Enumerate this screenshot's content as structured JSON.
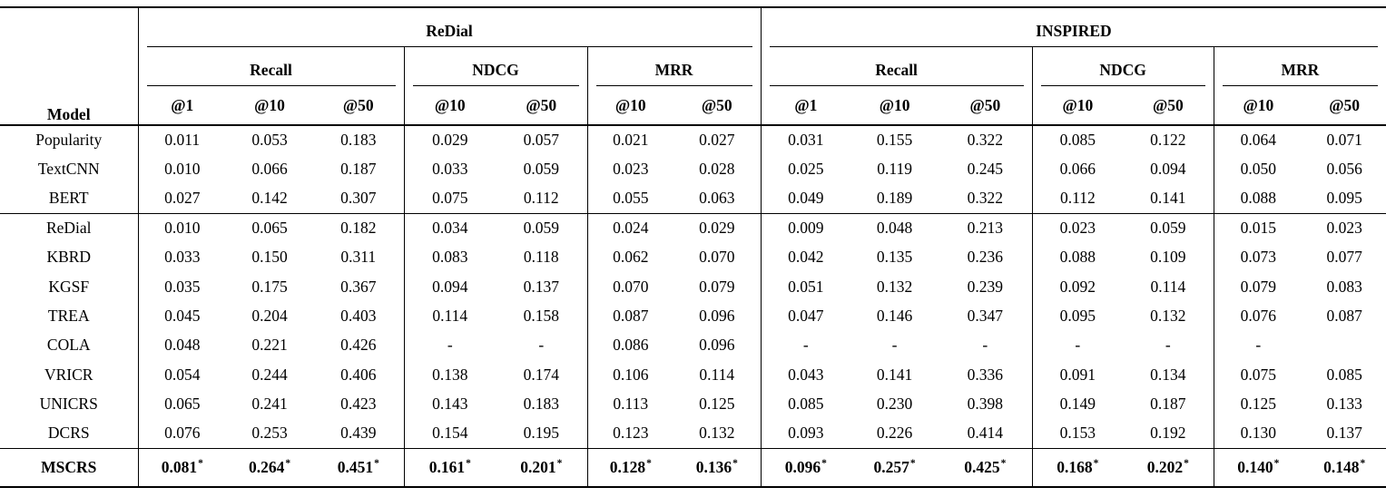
{
  "table": {
    "model_header": "Model",
    "footnote_symbol": "*",
    "datasets": [
      {
        "name": "ReDial",
        "groups": [
          {
            "name": "Recall",
            "cols": [
              "@1",
              "@10",
              "@50"
            ]
          },
          {
            "name": "NDCG",
            "cols": [
              "@10",
              "@50"
            ]
          },
          {
            "name": "MRR",
            "cols": [
              "@10",
              "@50"
            ]
          }
        ]
      },
      {
        "name": "INSPIRED",
        "groups": [
          {
            "name": "Recall",
            "cols": [
              "@1",
              "@10",
              "@50"
            ]
          },
          {
            "name": "NDCG",
            "cols": [
              "@10",
              "@50"
            ]
          },
          {
            "name": "MRR",
            "cols": [
              "@10",
              "@50"
            ]
          }
        ]
      }
    ],
    "row_groups": [
      {
        "rows": [
          {
            "model": "Popularity",
            "values": [
              "0.011",
              "0.053",
              "0.183",
              "0.029",
              "0.057",
              "0.021",
              "0.027",
              "0.031",
              "0.155",
              "0.322",
              "0.085",
              "0.122",
              "0.064",
              "0.071"
            ]
          },
          {
            "model": "TextCNN",
            "values": [
              "0.010",
              "0.066",
              "0.187",
              "0.033",
              "0.059",
              "0.023",
              "0.028",
              "0.025",
              "0.119",
              "0.245",
              "0.066",
              "0.094",
              "0.050",
              "0.056"
            ]
          },
          {
            "model": "BERT",
            "values": [
              "0.027",
              "0.142",
              "0.307",
              "0.075",
              "0.112",
              "0.055",
              "0.063",
              "0.049",
              "0.189",
              "0.322",
              "0.112",
              "0.141",
              "0.088",
              "0.095"
            ]
          }
        ]
      },
      {
        "rows": [
          {
            "model": "ReDial",
            "values": [
              "0.010",
              "0.065",
              "0.182",
              "0.034",
              "0.059",
              "0.024",
              "0.029",
              "0.009",
              "0.048",
              "0.213",
              "0.023",
              "0.059",
              "0.015",
              "0.023"
            ]
          },
          {
            "model": "KBRD",
            "values": [
              "0.033",
              "0.150",
              "0.311",
              "0.083",
              "0.118",
              "0.062",
              "0.070",
              "0.042",
              "0.135",
              "0.236",
              "0.088",
              "0.109",
              "0.073",
              "0.077"
            ]
          },
          {
            "model": "KGSF",
            "values": [
              "0.035",
              "0.175",
              "0.367",
              "0.094",
              "0.137",
              "0.070",
              "0.079",
              "0.051",
              "0.132",
              "0.239",
              "0.092",
              "0.114",
              "0.079",
              "0.083"
            ]
          },
          {
            "model": "TREA",
            "values": [
              "0.045",
              "0.204",
              "0.403",
              "0.114",
              "0.158",
              "0.087",
              "0.096",
              "0.047",
              "0.146",
              "0.347",
              "0.095",
              "0.132",
              "0.076",
              "0.087"
            ]
          },
          {
            "model": "COLA",
            "values": [
              "0.048",
              "0.221",
              "0.426",
              "-",
              "-",
              "0.086",
              "0.096",
              "-",
              "-",
              "-",
              "-",
              "-",
              "-",
              ""
            ]
          },
          {
            "model": "VRICR",
            "values": [
              "0.054",
              "0.244",
              "0.406",
              "0.138",
              "0.174",
              "0.106",
              "0.114",
              "0.043",
              "0.141",
              "0.336",
              "0.091",
              "0.134",
              "0.075",
              "0.085"
            ]
          },
          {
            "model": "UNICRS",
            "values": [
              "0.065",
              "0.241",
              "0.423",
              "0.143",
              "0.183",
              "0.113",
              "0.125",
              "0.085",
              "0.230",
              "0.398",
              "0.149",
              "0.187",
              "0.125",
              "0.133"
            ]
          },
          {
            "model": "DCRS",
            "values": [
              "0.076",
              "0.253",
              "0.439",
              "0.154",
              "0.195",
              "0.123",
              "0.132",
              "0.093",
              "0.226",
              "0.414",
              "0.153",
              "0.192",
              "0.130",
              "0.137"
            ]
          }
        ]
      },
      {
        "bold": true,
        "rows": [
          {
            "model": "MSCRS",
            "values": [
              "0.081*",
              "0.264*",
              "0.451*",
              "0.161*",
              "0.201*",
              "0.128*",
              "0.136*",
              "0.096*",
              "0.257*",
              "0.425*",
              "0.168*",
              "0.202*",
              "0.140*",
              "0.148*"
            ]
          }
        ]
      }
    ]
  }
}
